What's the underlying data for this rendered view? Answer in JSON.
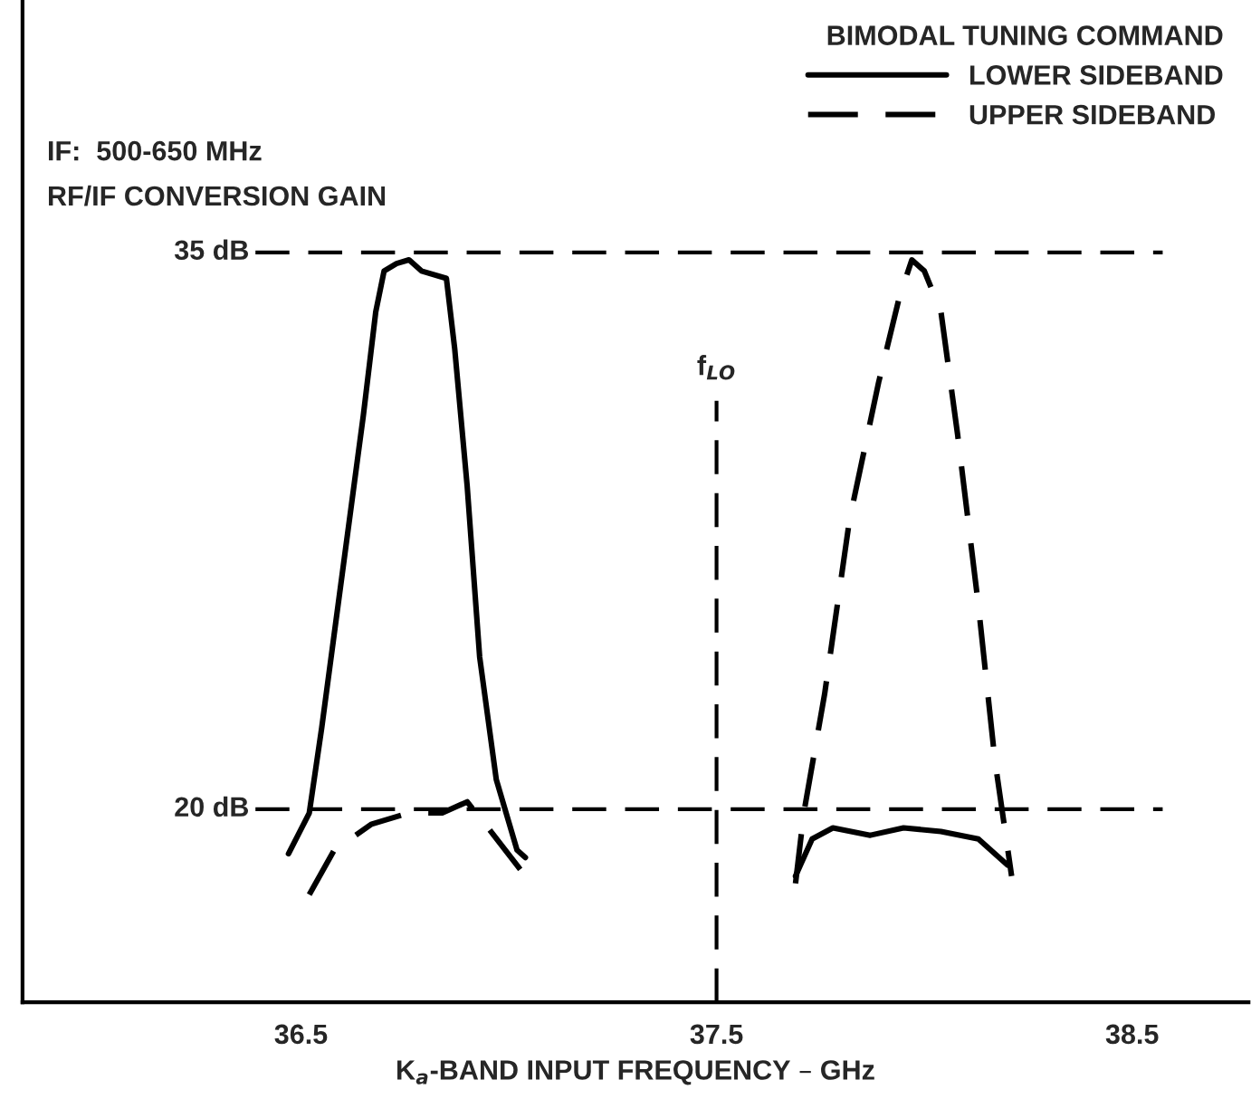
{
  "chart_data": {
    "type": "line",
    "xlabel": "K$_{a}$-BAND INPUT FREQUENCY – GHz",
    "legend_title": "BIMODAL TUNING COMMAND",
    "legend": "top right",
    "grid": false,
    "tick_labels": "x",
    "xlim": [
      35.83,
      38.78
    ],
    "ylim": [
      14.8,
      41.8
    ],
    "xticks": [
      36.5,
      37.5,
      38.5
    ],
    "annotations": [
      "IF:  500-650 MHz",
      "RF/IF CONVERSION GAIN"
    ],
    "ref_lines": [
      {
        "axis": "y",
        "value": 35,
        "label": "35 dB",
        "line_style": "dashed"
      },
      {
        "axis": "y",
        "value": 20,
        "label": "20 dB",
        "line_style": "dashed"
      },
      {
        "axis": "x",
        "value": 37.5,
        "label": "f$_{LO}$",
        "line_style": "dashed"
      }
    ],
    "series": [
      {
        "name": "LOWER SIDEBAND",
        "color": "#000000",
        "line_style": "solid",
        "x": [
          36.47,
          36.52,
          36.55,
          36.6,
          36.65,
          36.68,
          36.7,
          36.73,
          36.76,
          36.79,
          36.85,
          36.87,
          36.9,
          36.93,
          36.97,
          37.02,
          37.04,
          37.3,
          37.69,
          37.73,
          37.78,
          37.87,
          37.95,
          38.04,
          38.13,
          38.2
        ],
        "values": [
          18.8,
          19.9,
          22.2,
          26.4,
          30.6,
          33.4,
          34.5,
          34.7,
          34.8,
          34.5,
          34.3,
          32.4,
          28.7,
          24.1,
          20.8,
          18.9,
          18.7,
          null,
          18.2,
          19.2,
          19.5,
          19.3,
          19.5,
          19.4,
          19.2,
          18.5
        ]
      },
      {
        "name": "UPPER SIDEBAND",
        "color": "#000000",
        "line_style": "dashed",
        "x": [
          36.52,
          36.58,
          36.67,
          36.76,
          36.84,
          36.9,
          36.95,
          37.04,
          37.3,
          37.69,
          37.71,
          37.76,
          37.82,
          37.89,
          37.94,
          37.97,
          38.0,
          38.04,
          38.08,
          38.13,
          38.17,
          38.21
        ],
        "values": [
          17.7,
          18.9,
          19.6,
          19.9,
          19.9,
          20.2,
          19.5,
          18.2,
          null,
          18.0,
          19.9,
          23.1,
          27.8,
          31.5,
          33.8,
          34.8,
          34.5,
          33.4,
          30.1,
          25.5,
          21.3,
          18.2
        ]
      }
    ]
  }
}
